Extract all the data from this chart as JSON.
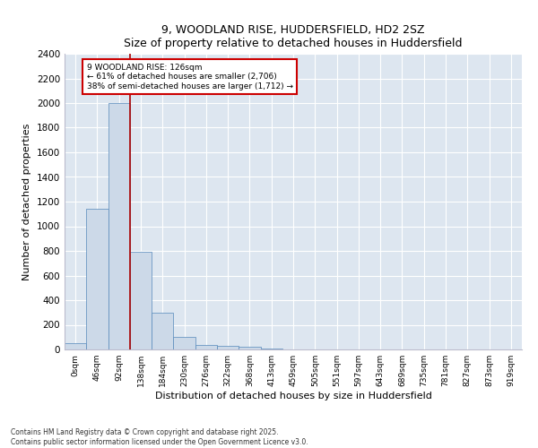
{
  "title1": "9, WOODLAND RISE, HUDDERSFIELD, HD2 2SZ",
  "title2": "Size of property relative to detached houses in Huddersfield",
  "xlabel": "Distribution of detached houses by size in Huddersfield",
  "ylabel": "Number of detached properties",
  "bar_labels": [
    "0sqm",
    "46sqm",
    "92sqm",
    "138sqm",
    "184sqm",
    "230sqm",
    "276sqm",
    "322sqm",
    "368sqm",
    "413sqm",
    "459sqm",
    "505sqm",
    "551sqm",
    "597sqm",
    "643sqm",
    "689sqm",
    "735sqm",
    "781sqm",
    "827sqm",
    "873sqm",
    "919sqm"
  ],
  "bar_values": [
    50,
    1140,
    2000,
    790,
    295,
    100,
    40,
    30,
    20,
    8,
    0,
    0,
    0,
    0,
    0,
    0,
    0,
    0,
    0,
    0,
    0
  ],
  "bar_color": "#ccd9e8",
  "bar_edgecolor": "#5588bb",
  "property_line_x": 2.5,
  "property_line_color": "#aa0000",
  "annotation_text": "9 WOODLAND RISE: 126sqm\n← 61% of detached houses are smaller (2,706)\n38% of semi-detached houses are larger (1,712) →",
  "annotation_box_color": "#cc0000",
  "ylim": [
    0,
    2400
  ],
  "yticks": [
    0,
    200,
    400,
    600,
    800,
    1000,
    1200,
    1400,
    1600,
    1800,
    2000,
    2200,
    2400
  ],
  "bg_color": "#dde6f0",
  "grid_color": "#ffffff",
  "footnote": "Contains HM Land Registry data © Crown copyright and database right 2025.\nContains public sector information licensed under the Open Government Licence v3.0."
}
